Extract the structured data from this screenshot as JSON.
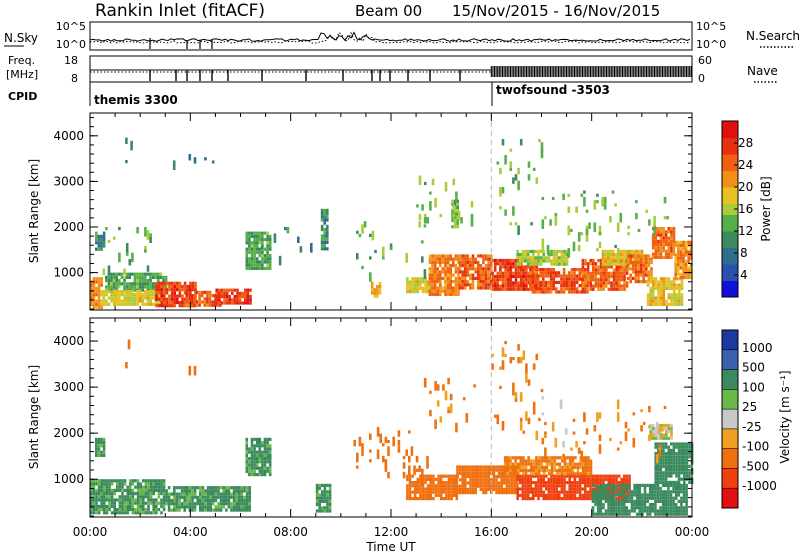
{
  "header": {
    "site": "Rankin Inlet (fitACF)",
    "beam": "Beam 00",
    "dates": "15/Nov/2015 - 16/Nov/2015"
  },
  "noise_panel": {
    "left_label": "N.Sky",
    "right_label": "N.Search",
    "ticks_left": [
      "10^5",
      "10^0"
    ],
    "ticks_right": [
      "10^5",
      "10^0"
    ]
  },
  "freq_panel": {
    "left_label_line1": "Freq.",
    "left_label_line2": "[MHz]",
    "right_label": "Nave",
    "ticks_left": [
      "18",
      "8"
    ],
    "ticks_right": [
      "60",
      "0"
    ]
  },
  "cpid": {
    "label": "CPID",
    "segments": [
      {
        "name": "themis 3300",
        "start_hour": 0
      },
      {
        "name": "twofsound -3503",
        "start_hour": 16
      }
    ]
  },
  "chart_data": [
    {
      "type": "heatmap",
      "name": "power",
      "ylabel": "Slant Range [km]",
      "xlabel": "",
      "x_range_hours": [
        0,
        24
      ],
      "ylim": [
        180,
        4500
      ],
      "yticks": [
        "1000",
        "2000",
        "3000",
        "4000"
      ],
      "colorbar": {
        "label": "Power [dB]",
        "range": [
          0,
          32
        ],
        "ticks": [
          "4",
          "8",
          "12",
          "16",
          "20",
          "24",
          "28"
        ]
      },
      "regions": [
        {
          "h0": 0.0,
          "h1": 0.5,
          "r0": 250,
          "r1": 900,
          "v": 22
        },
        {
          "h0": 0.2,
          "h1": 0.6,
          "r0": 1500,
          "r1": 1900,
          "v": 10
        },
        {
          "h0": 0.6,
          "h1": 3.0,
          "r0": 600,
          "r1": 1000,
          "v": 12
        },
        {
          "h0": 0.5,
          "h1": 2.8,
          "r0": 300,
          "r1": 620,
          "v": 18
        },
        {
          "h0": 2.6,
          "h1": 4.2,
          "r0": 300,
          "r1": 800,
          "v": 27
        },
        {
          "h0": 3.8,
          "h1": 5.2,
          "r0": 300,
          "r1": 600,
          "v": 25
        },
        {
          "h0": 5.0,
          "h1": 6.4,
          "r0": 300,
          "r1": 650,
          "v": 27
        },
        {
          "h0": 6.2,
          "h1": 7.2,
          "r0": 1100,
          "r1": 1900,
          "v": 12
        },
        {
          "h0": 9.2,
          "h1": 9.5,
          "r0": 1500,
          "r1": 2400,
          "v": 10
        },
        {
          "h0": 11.2,
          "h1": 11.6,
          "r0": 500,
          "r1": 800,
          "v": 20
        },
        {
          "h0": 12.6,
          "h1": 13.6,
          "r0": 550,
          "r1": 900,
          "v": 18
        },
        {
          "h0": 13.5,
          "h1": 14.7,
          "r0": 500,
          "r1": 1400,
          "v": 23
        },
        {
          "h0": 14.4,
          "h1": 14.7,
          "r0": 2000,
          "r1": 2600,
          "v": 13
        },
        {
          "h0": 14.7,
          "h1": 16.0,
          "r0": 650,
          "r1": 1400,
          "v": 25
        },
        {
          "h0": 16.0,
          "h1": 17.8,
          "r0": 650,
          "r1": 1300,
          "v": 27
        },
        {
          "h0": 17.5,
          "h1": 19.8,
          "r0": 600,
          "r1": 1100,
          "v": 26
        },
        {
          "h0": 17.0,
          "h1": 19.0,
          "r0": 1150,
          "r1": 1500,
          "v": 16
        },
        {
          "h0": 19.6,
          "h1": 21.4,
          "r0": 600,
          "r1": 1300,
          "v": 25
        },
        {
          "h0": 20.4,
          "h1": 22.0,
          "r0": 1200,
          "r1": 1500,
          "v": 18
        },
        {
          "h0": 21.4,
          "h1": 22.4,
          "r0": 800,
          "r1": 1400,
          "v": 24
        },
        {
          "h0": 22.4,
          "h1": 23.3,
          "r0": 1300,
          "r1": 2000,
          "v": 24
        },
        {
          "h0": 22.2,
          "h1": 23.6,
          "r0": 300,
          "r1": 900,
          "v": 19
        },
        {
          "h0": 23.3,
          "h1": 24.0,
          "r0": 900,
          "r1": 1700,
          "v": 22
        }
      ],
      "sparse": [
        {
          "h0": 1.4,
          "h1": 1.7,
          "r0": 3400,
          "r1": 4100,
          "v": 8
        },
        {
          "h0": 3.2,
          "h1": 5.0,
          "r0": 3400,
          "r1": 3600,
          "v": 8
        },
        {
          "h0": 0.5,
          "h1": 2.5,
          "r0": 1000,
          "r1": 2000,
          "v": 13
        },
        {
          "h0": 6.8,
          "h1": 9.0,
          "r0": 1300,
          "r1": 2000,
          "v": 11
        },
        {
          "h0": 10.5,
          "h1": 13.5,
          "r0": 1000,
          "r1": 2200,
          "v": 13
        },
        {
          "h0": 13.0,
          "h1": 15.5,
          "r0": 2200,
          "r1": 3200,
          "v": 14
        },
        {
          "h0": 16.0,
          "h1": 18.0,
          "r0": 2000,
          "r1": 4000,
          "v": 13
        },
        {
          "h0": 18.0,
          "h1": 23.0,
          "r0": 1500,
          "r1": 2800,
          "v": 14
        }
      ]
    },
    {
      "type": "heatmap",
      "name": "velocity",
      "ylabel": "Slant Range [km]",
      "xlabel": "Time UT",
      "x_range_hours": [
        0,
        24
      ],
      "ylim": [
        180,
        4500
      ],
      "yticks": [
        "1000",
        "2000",
        "3000",
        "4000"
      ],
      "xticks": [
        "00:00",
        "04:00",
        "08:00",
        "12:00",
        "16:00",
        "20:00",
        "00:00"
      ],
      "colorbar": {
        "label": "Velocity [m s⁻¹]",
        "ticks": [
          "1000",
          "500",
          "100",
          "25",
          "-25",
          "-100",
          "-500",
          "-1000"
        ]
      },
      "regions": [
        {
          "h0": 0.0,
          "h1": 3.0,
          "r0": 250,
          "r1": 1000,
          "v": 150
        },
        {
          "h0": 0.2,
          "h1": 0.6,
          "r0": 1500,
          "r1": 1900,
          "v": 150
        },
        {
          "h0": 3.0,
          "h1": 6.4,
          "r0": 300,
          "r1": 850,
          "v": 150
        },
        {
          "h0": 6.2,
          "h1": 7.2,
          "r0": 1100,
          "r1": 1900,
          "v": 150
        },
        {
          "h0": 9.0,
          "h1": 9.6,
          "r0": 300,
          "r1": 900,
          "v": 150
        },
        {
          "h0": 12.6,
          "h1": 14.6,
          "r0": 550,
          "r1": 1100,
          "v": -300
        },
        {
          "h0": 14.6,
          "h1": 17.0,
          "r0": 700,
          "r1": 1300,
          "v": -300
        },
        {
          "h0": 17.0,
          "h1": 21.5,
          "r0": 600,
          "r1": 1100,
          "v": -600
        },
        {
          "h0": 16.5,
          "h1": 20.0,
          "r0": 1100,
          "r1": 1500,
          "v": -150
        },
        {
          "h0": 20.0,
          "h1": 23.8,
          "r0": 250,
          "r1": 900,
          "v": 200
        },
        {
          "h0": 22.5,
          "h1": 24.0,
          "r0": 900,
          "r1": 1800,
          "v": 300
        },
        {
          "h0": 22.3,
          "h1": 23.2,
          "r0": 1900,
          "r1": 2200,
          "v": 0
        }
      ],
      "sparse": [
        {
          "h0": 1.4,
          "h1": 1.7,
          "r0": 3400,
          "r1": 4100,
          "v": -150
        },
        {
          "h0": 3.2,
          "h1": 5.0,
          "r0": 3400,
          "r1": 3600,
          "v": -150
        },
        {
          "h0": 10.5,
          "h1": 13.5,
          "r0": 1000,
          "r1": 2200,
          "v": -200
        },
        {
          "h0": 13.0,
          "h1": 15.5,
          "r0": 2200,
          "r1": 3200,
          "v": -150
        },
        {
          "h0": 16.0,
          "h1": 18.0,
          "r0": 2000,
          "r1": 4000,
          "v": -150
        },
        {
          "h0": 18.0,
          "h1": 23.0,
          "r0": 1500,
          "r1": 2800,
          "v": -100
        }
      ]
    }
  ]
}
